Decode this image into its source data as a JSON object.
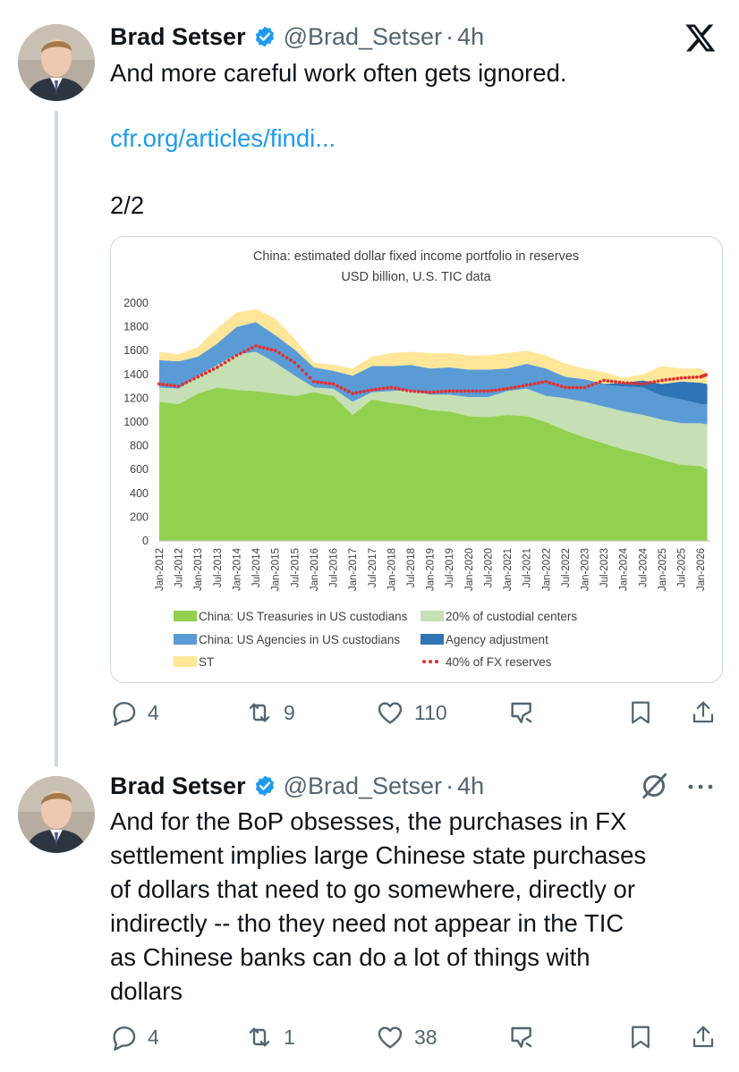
{
  "tweets": [
    {
      "author": "Brad Setser",
      "handle": "@Brad_Setser",
      "time": "4h",
      "text": "And more careful work often gets ignored.",
      "link": "cfr.org/articles/findi...",
      "thread_count": "2/2",
      "replies": "4",
      "retweets": "9",
      "likes": "110"
    },
    {
      "author": "Brad Setser",
      "handle": "@Brad_Setser",
      "time": "4h",
      "text_lines": [
        "And for the BoP obsesses, the purchases in FX",
        "settlement implies large Chinese state purchases",
        "of dollars that need to go somewhere, directly or",
        "indirectly -- tho they need not appear in the TIC",
        "as Chinese banks can do a lot of things with",
        "dollars"
      ],
      "replies": "4",
      "retweets": "1",
      "likes": "38"
    }
  ],
  "colors": {
    "accent": "#1d9bf0",
    "muted": "#536471",
    "treasuries": "#92d050",
    "custodial": "#c5e0b4",
    "agencies": "#5b9bd5",
    "agency_adj": "#2e75b6",
    "st": "#ffe699",
    "fx40": "#e03030"
  },
  "chart_data": {
    "type": "area",
    "title": "China: estimated dollar fixed income portfolio in reserves",
    "subtitle": "USD billion, U.S. TIC data",
    "ylim": [
      0,
      2000
    ],
    "yticks": [
      0,
      200,
      400,
      600,
      800,
      1000,
      1200,
      1400,
      1600,
      1800,
      2000
    ],
    "xticks": [
      "Jan-2012",
      "Jul-2012",
      "Jan-2013",
      "Jul-2013",
      "Jan-2014",
      "Jul-2014",
      "Jan-2015",
      "Jul-2015",
      "Jan-2016",
      "Jul-2016",
      "Jan-2017",
      "Jul-2017",
      "Jan-2018",
      "Jul-2018",
      "Jan-2019",
      "Jul-2019",
      "Jan-2020",
      "Jul-2020",
      "Jan-2021",
      "Jul-2021",
      "Jan-2022",
      "Jul-2022",
      "Jan-2023",
      "Jul-2023",
      "Jan-2024",
      "Jul-2024",
      "Jan-2025",
      "Jul-2025",
      "Jan-2026"
    ],
    "legend_placement": "bottom",
    "x": [
      2012.0,
      2012.5,
      2013.0,
      2013.5,
      2014.0,
      2014.5,
      2015.0,
      2015.5,
      2016.0,
      2016.5,
      2017.0,
      2017.5,
      2018.0,
      2018.5,
      2019.0,
      2019.5,
      2020.0,
      2020.5,
      2021.0,
      2021.5,
      2022.0,
      2022.5,
      2023.0,
      2023.5,
      2024.0,
      2024.5,
      2025.0,
      2025.5,
      2026.0,
      2026.17
    ],
    "series": [
      {
        "name": "China: US Treasuries in US custodians",
        "values": [
          1170,
          1150,
          1240,
          1290,
          1270,
          1260,
          1240,
          1220,
          1250,
          1220,
          1060,
          1190,
          1160,
          1140,
          1100,
          1090,
          1050,
          1040,
          1060,
          1050,
          1000,
          930,
          870,
          820,
          770,
          730,
          680,
          640,
          630,
          600
        ]
      },
      {
        "name": "20% of custodial centers",
        "values": [
          120,
          130,
          150,
          190,
          300,
          330,
          260,
          170,
          40,
          60,
          110,
          60,
          100,
          130,
          130,
          140,
          160,
          170,
          200,
          230,
          220,
          270,
          300,
          310,
          320,
          330,
          340,
          350,
          360,
          380
        ]
      },
      {
        "name": "China: US Agencies in US custodians",
        "values": [
          230,
          230,
          160,
          180,
          230,
          250,
          230,
          220,
          170,
          150,
          220,
          220,
          210,
          210,
          220,
          230,
          230,
          230,
          190,
          210,
          230,
          180,
          190,
          180,
          210,
          230,
          200,
          200,
          160,
          170
        ]
      },
      {
        "name": "Agency adjustment",
        "values": [
          0,
          0,
          0,
          0,
          0,
          0,
          0,
          0,
          0,
          0,
          0,
          0,
          0,
          0,
          0,
          0,
          0,
          0,
          0,
          0,
          0,
          0,
          0,
          10,
          30,
          60,
          100,
          150,
          180,
          170
        ]
      },
      {
        "name": "ST",
        "values": [
          70,
          60,
          80,
          130,
          120,
          110,
          140,
          90,
          40,
          50,
          60,
          80,
          110,
          110,
          130,
          120,
          120,
          120,
          130,
          110,
          110,
          110,
          90,
          100,
          40,
          50,
          150,
          110,
          120,
          90
        ]
      }
    ],
    "line_series": {
      "name": "40% of FX reserves",
      "values": [
        1320,
        1300,
        1380,
        1460,
        1560,
        1640,
        1600,
        1500,
        1340,
        1320,
        1240,
        1270,
        1290,
        1260,
        1250,
        1260,
        1260,
        1260,
        1280,
        1310,
        1340,
        1290,
        1290,
        1350,
        1330,
        1320,
        1350,
        1370,
        1380,
        1400
      ]
    }
  }
}
